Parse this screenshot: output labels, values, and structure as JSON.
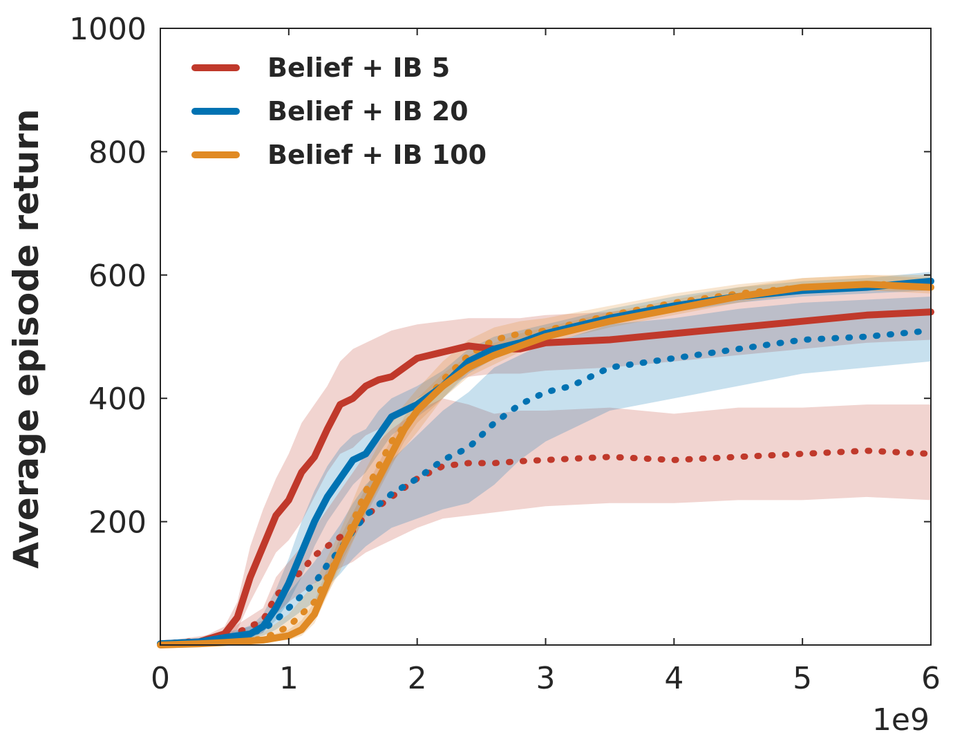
{
  "chart_data": {
    "type": "line",
    "title": "",
    "xlabel": "",
    "ylabel": "Average episode return",
    "x_offset_label": "1e9",
    "xlim": [
      0,
      6
    ],
    "ylim": [
      0,
      1000
    ],
    "xticks": [
      0,
      1,
      2,
      3,
      4,
      5,
      6
    ],
    "xtick_labels": [
      "0",
      "1",
      "2",
      "3",
      "4",
      "5",
      "6"
    ],
    "yticks": [
      200,
      400,
      600,
      800,
      1000
    ],
    "ytick_labels": [
      "200",
      "400",
      "600",
      "800",
      "1000"
    ],
    "grid": false,
    "legend_position": "top-left",
    "series": [
      {
        "name": "Belief + IB 5",
        "color": "#c0392b",
        "style": "solid",
        "in_legend": true,
        "x": [
          0,
          0.3,
          0.5,
          0.6,
          0.7,
          0.8,
          0.9,
          1.0,
          1.1,
          1.2,
          1.3,
          1.4,
          1.5,
          1.6,
          1.7,
          1.8,
          1.9,
          2.0,
          2.2,
          2.4,
          2.6,
          2.8,
          3.0,
          3.5,
          4.0,
          4.5,
          5.0,
          5.5,
          6.0
        ],
        "y": [
          2,
          5,
          18,
          45,
          110,
          160,
          210,
          235,
          280,
          305,
          350,
          390,
          400,
          420,
          430,
          435,
          450,
          465,
          475,
          485,
          480,
          480,
          490,
          495,
          505,
          515,
          525,
          535,
          540
        ],
        "band_lower": [
          0,
          2,
          10,
          25,
          70,
          110,
          150,
          170,
          200,
          240,
          280,
          310,
          320,
          340,
          350,
          360,
          380,
          400,
          420,
          435,
          440,
          440,
          445,
          450,
          460,
          470,
          480,
          490,
          495
        ],
        "band_upper": [
          5,
          10,
          30,
          70,
          160,
          220,
          270,
          310,
          360,
          390,
          420,
          460,
          480,
          490,
          500,
          510,
          515,
          520,
          525,
          530,
          530,
          530,
          535,
          540,
          550,
          560,
          570,
          575,
          580
        ]
      },
      {
        "name": "Belief + IB 20",
        "color": "#0072b2",
        "style": "solid",
        "in_legend": true,
        "x": [
          0,
          0.3,
          0.5,
          0.7,
          0.8,
          0.9,
          1.0,
          1.1,
          1.2,
          1.3,
          1.4,
          1.5,
          1.6,
          1.7,
          1.8,
          1.9,
          2.0,
          2.2,
          2.4,
          2.6,
          2.8,
          3.0,
          3.5,
          4.0,
          4.5,
          5.0,
          5.5,
          6.0
        ],
        "y": [
          2,
          5,
          12,
          18,
          30,
          60,
          100,
          150,
          200,
          240,
          270,
          300,
          310,
          340,
          370,
          380,
          390,
          420,
          460,
          480,
          490,
          505,
          530,
          550,
          565,
          575,
          580,
          590
        ],
        "band_lower": [
          0,
          2,
          5,
          10,
          20,
          40,
          70,
          110,
          160,
          200,
          230,
          260,
          280,
          310,
          340,
          355,
          370,
          400,
          440,
          465,
          480,
          495,
          520,
          540,
          555,
          565,
          570,
          575
        ],
        "band_upper": [
          5,
          10,
          20,
          30,
          50,
          90,
          140,
          200,
          250,
          290,
          320,
          340,
          350,
          380,
          400,
          410,
          420,
          445,
          480,
          500,
          510,
          520,
          545,
          565,
          580,
          590,
          595,
          605
        ]
      },
      {
        "name": "Belief + IB 100",
        "color": "#e08a24",
        "style": "solid",
        "in_legend": true,
        "x": [
          0,
          0.3,
          0.5,
          0.8,
          1.0,
          1.1,
          1.2,
          1.3,
          1.4,
          1.5,
          1.6,
          1.7,
          1.8,
          1.9,
          2.0,
          2.2,
          2.4,
          2.6,
          2.8,
          3.0,
          3.5,
          4.0,
          4.5,
          5.0,
          5.5,
          6.0
        ],
        "y": [
          0,
          2,
          4,
          8,
          15,
          25,
          50,
          100,
          150,
          190,
          230,
          270,
          310,
          350,
          380,
          420,
          450,
          470,
          485,
          500,
          525,
          545,
          565,
          580,
          585,
          580
        ],
        "band_lower": [
          0,
          0,
          2,
          5,
          8,
          15,
          35,
          80,
          130,
          170,
          210,
          250,
          290,
          330,
          360,
          400,
          435,
          455,
          475,
          490,
          515,
          535,
          555,
          570,
          575,
          570
        ],
        "band_upper": [
          3,
          5,
          8,
          12,
          25,
          40,
          70,
          125,
          175,
          215,
          255,
          295,
          335,
          370,
          400,
          440,
          470,
          490,
          505,
          515,
          540,
          560,
          580,
          595,
          600,
          595
        ]
      },
      {
        "name": "Belief + IB 5 (dotted)",
        "color": "#c0392b",
        "style": "dotted",
        "in_legend": false,
        "x": [
          0,
          0.5,
          0.8,
          0.9,
          1.0,
          1.1,
          1.2,
          1.3,
          1.4,
          1.5,
          1.6,
          1.8,
          2.0,
          2.2,
          2.4,
          2.6,
          2.8,
          3.0,
          3.5,
          4.0,
          4.5,
          5.0,
          5.5,
          6.0
        ],
        "y": [
          2,
          10,
          40,
          80,
          100,
          120,
          145,
          160,
          175,
          185,
          210,
          240,
          270,
          290,
          295,
          295,
          298,
          300,
          305,
          300,
          305,
          310,
          315,
          310
        ],
        "band_lower": [
          0,
          5,
          20,
          50,
          70,
          85,
          100,
          110,
          125,
          135,
          150,
          170,
          190,
          205,
          210,
          215,
          220,
          225,
          230,
          230,
          235,
          235,
          240,
          235
        ],
        "band_upper": [
          5,
          20,
          60,
          110,
          135,
          160,
          190,
          220,
          250,
          280,
          310,
          350,
          380,
          400,
          390,
          375,
          380,
          380,
          385,
          375,
          385,
          385,
          390,
          390
        ]
      },
      {
        "name": "Belief + IB 20 (dotted)",
        "color": "#0072b2",
        "style": "dotted",
        "in_legend": false,
        "x": [
          0,
          0.5,
          0.8,
          0.9,
          1.0,
          1.1,
          1.2,
          1.3,
          1.4,
          1.5,
          1.6,
          1.8,
          2.0,
          2.2,
          2.4,
          2.6,
          2.8,
          3.0,
          3.2,
          3.5,
          4.0,
          4.5,
          5.0,
          5.5,
          6.0
        ],
        "y": [
          2,
          8,
          25,
          40,
          60,
          80,
          100,
          130,
          155,
          185,
          210,
          245,
          270,
          300,
          320,
          360,
          390,
          410,
          420,
          450,
          465,
          480,
          495,
          500,
          510
        ],
        "band_lower": [
          0,
          4,
          15,
          25,
          40,
          55,
          70,
          95,
          115,
          140,
          160,
          190,
          205,
          220,
          230,
          260,
          300,
          330,
          350,
          380,
          400,
          420,
          440,
          450,
          460
        ],
        "band_upper": [
          5,
          15,
          40,
          60,
          85,
          110,
          135,
          165,
          195,
          230,
          260,
          300,
          340,
          380,
          410,
          450,
          470,
          490,
          500,
          520,
          530,
          545,
          555,
          560,
          565
        ]
      },
      {
        "name": "Belief + IB 100 (dotted)",
        "color": "#e08a24",
        "style": "dotted",
        "in_legend": false,
        "x": [
          0,
          0.5,
          0.8,
          1.0,
          1.2,
          1.4,
          1.6,
          1.8,
          2.0,
          2.2,
          2.4,
          2.6,
          2.8,
          3.0,
          3.5,
          4.0,
          4.5,
          5.0,
          5.5,
          6.0
        ],
        "y": [
          0,
          4,
          10,
          30,
          70,
          150,
          250,
          330,
          380,
          430,
          470,
          495,
          505,
          510,
          535,
          555,
          570,
          580,
          585,
          585
        ],
        "band_lower": [
          0,
          2,
          5,
          15,
          45,
          120,
          215,
          295,
          345,
          400,
          445,
          475,
          490,
          500,
          525,
          545,
          560,
          570,
          575,
          575
        ],
        "band_upper": [
          3,
          8,
          20,
          50,
          100,
          185,
          285,
          365,
          415,
          460,
          495,
          515,
          525,
          530,
          550,
          570,
          585,
          595,
          600,
          600
        ]
      }
    ]
  }
}
